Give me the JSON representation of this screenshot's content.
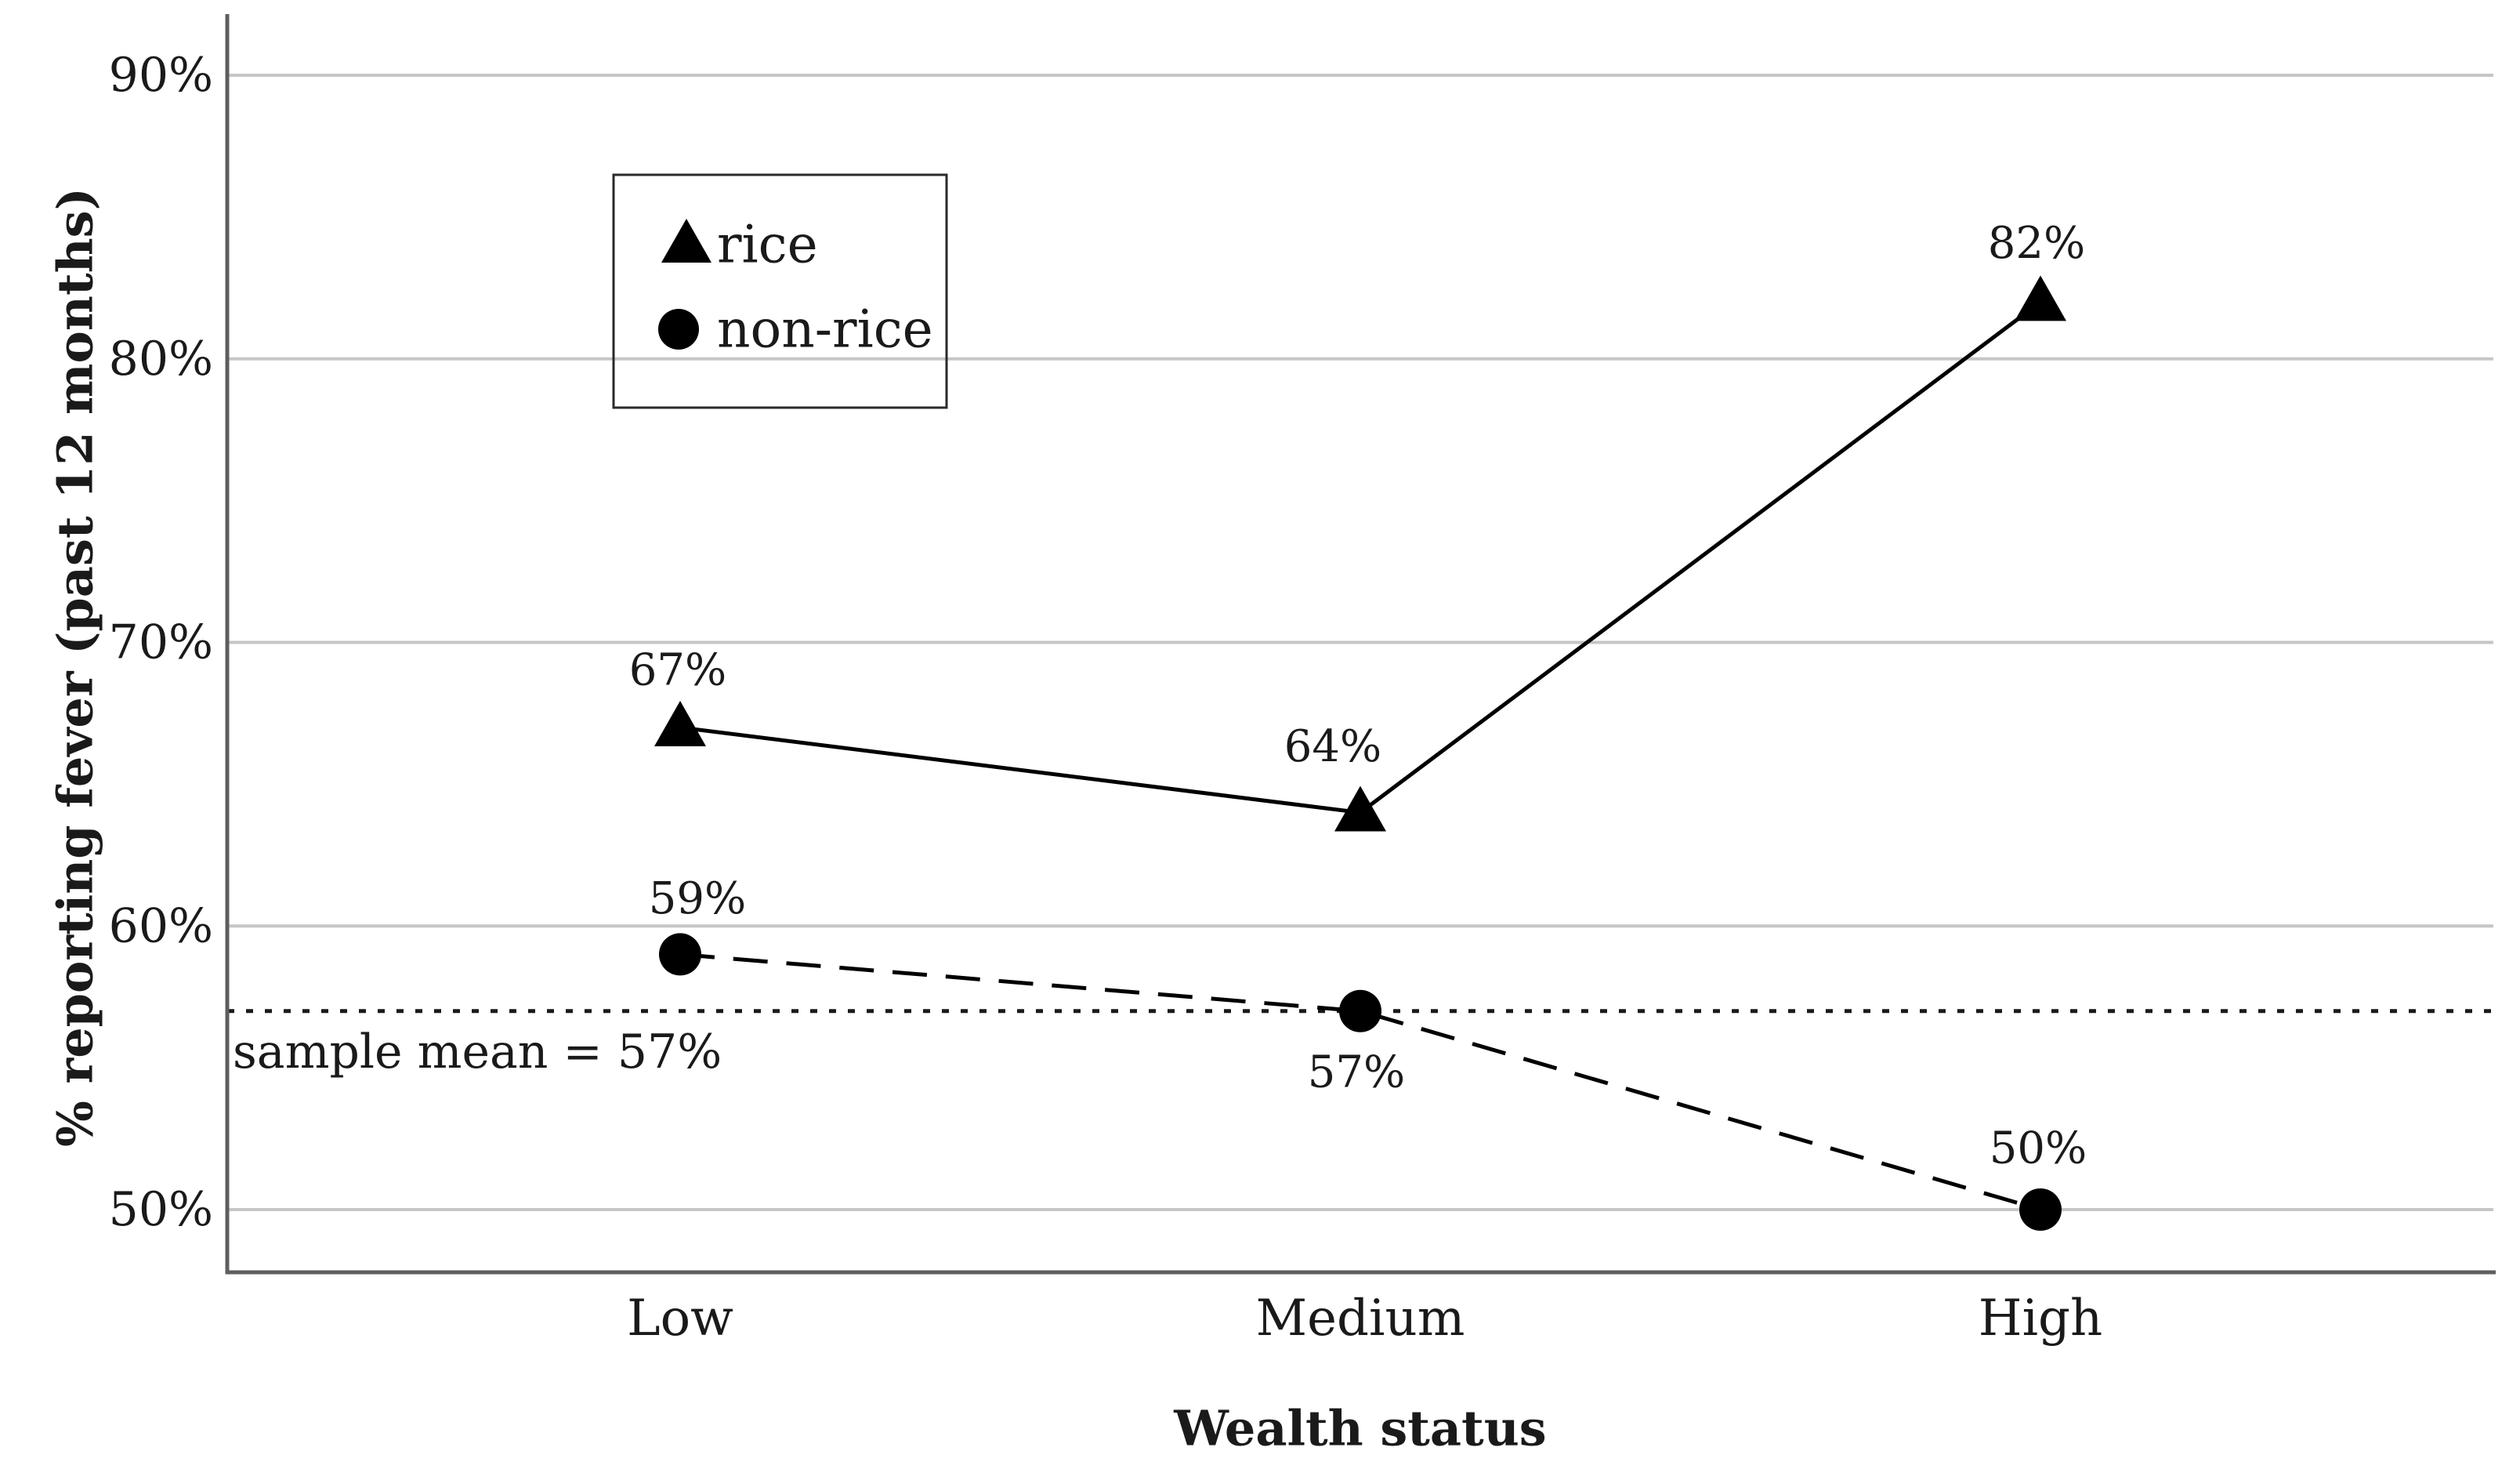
{
  "chart_data": {
    "type": "line",
    "categories": [
      "Low",
      "Medium",
      "High"
    ],
    "series": [
      {
        "name": "rice",
        "marker": "triangle",
        "line_style": "solid",
        "values": [
          67,
          64,
          82
        ],
        "labels": [
          "67%",
          "64%",
          "82%"
        ]
      },
      {
        "name": "non-rice",
        "marker": "circle",
        "line_style": "dashed",
        "values": [
          59,
          57,
          50
        ],
        "labels": [
          "59%",
          "57%",
          "50%"
        ]
      }
    ],
    "y_axis": {
      "title": "% reporting fever (past 12 months)",
      "tick_values": [
        50,
        60,
        70,
        80,
        90
      ],
      "tick_labels": [
        "50%",
        "60%",
        "70%",
        "80%",
        "90%"
      ],
      "range_shown": [
        47.8,
        92.2
      ]
    },
    "x_axis": {
      "title": "Wealth status"
    },
    "reference_line": {
      "value": 57,
      "label": "sample mean = 57%",
      "style": "dotted"
    },
    "legend": {
      "position": "upper-left-inside",
      "items": [
        {
          "marker": "triangle",
          "label": "rice"
        },
        {
          "marker": "circle",
          "label": "non-rice"
        }
      ]
    },
    "grid": "horizontal",
    "colors": {
      "series": "#000000",
      "gridline": "#c6c6c6",
      "axis_line": "#5e5e5e",
      "legend_border": "#2a2a2a",
      "text": "#1a1a1a",
      "background": "#ffffff"
    }
  }
}
